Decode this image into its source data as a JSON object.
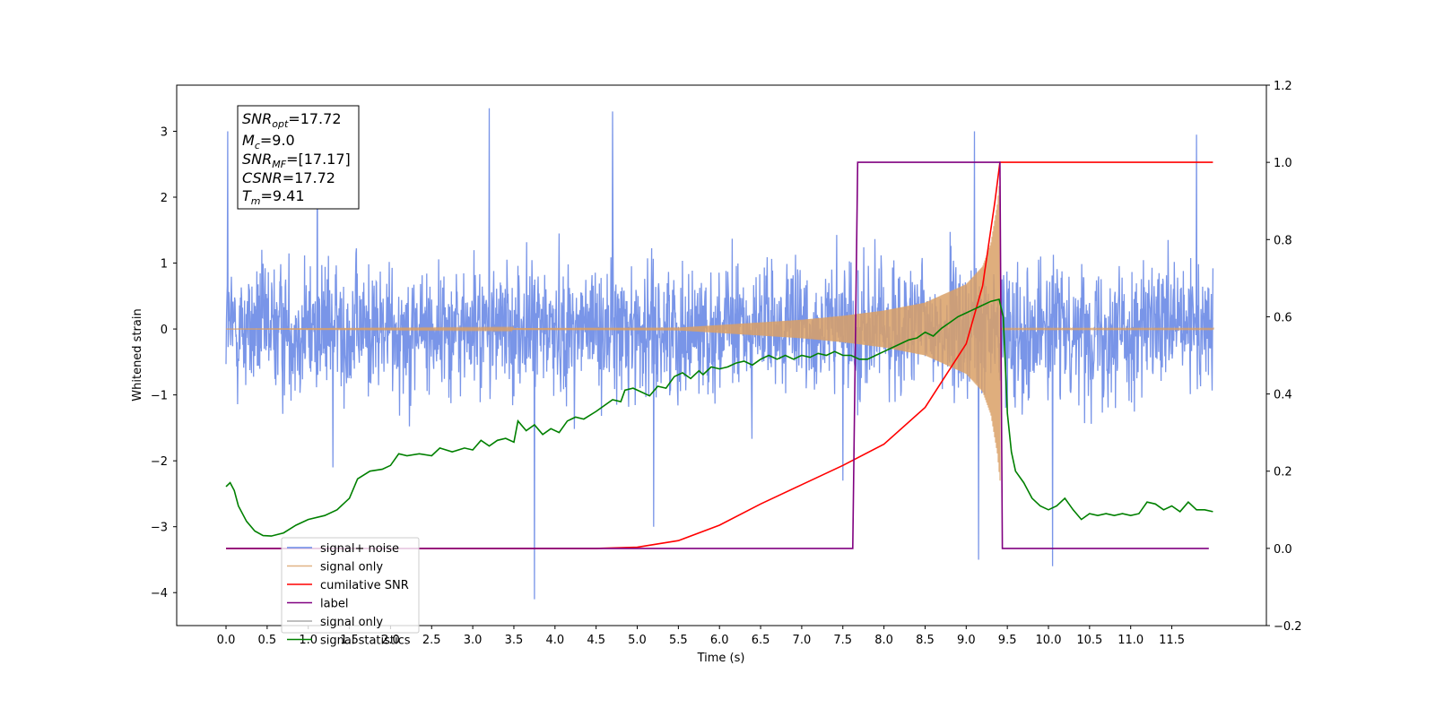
{
  "chart_data": {
    "type": "line",
    "xlabel": "Time (s)",
    "ylabel": "Whitened strain",
    "xlim": [
      -0.6,
      12.65
    ],
    "ylim_left": [
      -4.5,
      3.7
    ],
    "ylim_right": [
      -0.2,
      1.2
    ],
    "x_ticks": [
      "0.0",
      "0.5",
      "1.0",
      "1.5",
      "2.0",
      "2.5",
      "3.0",
      "3.5",
      "4.0",
      "4.5",
      "5.0",
      "5.5",
      "6.0",
      "6.5",
      "7.0",
      "7.5",
      "8.0",
      "8.5",
      "9.0",
      "9.5",
      "10.0",
      "10.5",
      "11.0",
      "11.5"
    ],
    "y_ticks_left": [
      "3",
      "2",
      "1",
      "0",
      "−1",
      "−2",
      "−3",
      "−4"
    ],
    "y_ticks_right": [
      "1.2",
      "1.0",
      "0.8",
      "0.6",
      "0.4",
      "0.2",
      "0.0",
      "−0.2"
    ],
    "legend_position": "lower-left",
    "grid": false,
    "annotation": {
      "snr_opt": {
        "symbol": "SNR",
        "sub": "opt",
        "value": "=17.72"
      },
      "mc": {
        "symbol": "M",
        "sub": "c",
        "value": "=9.0"
      },
      "snr_mf": {
        "symbol": "SNR",
        "sub": "MF",
        "value": "=[17.17]"
      },
      "csnr": {
        "symbol": "CSNR",
        "sub": "",
        "value": "=17.72"
      },
      "tm": {
        "symbol": "T",
        "sub": "m",
        "value": "=9.41"
      }
    },
    "series": [
      {
        "name": "signal+ noise",
        "axis": "left",
        "color": "#6a8ae6",
        "t_range": [
          0.0,
          12.0
        ],
        "noise_std": 0.8,
        "extremes": [
          [
            0.02,
            3.0
          ],
          [
            1.11,
            2.9
          ],
          [
            1.3,
            -2.1
          ],
          [
            3.2,
            3.35
          ],
          [
            3.75,
            -4.1
          ],
          [
            4.7,
            3.3
          ],
          [
            5.2,
            -3.0
          ],
          [
            9.15,
            -3.5
          ],
          [
            10.05,
            -3.6
          ],
          [
            11.8,
            2.95
          ],
          [
            7.5,
            -2.3
          ],
          [
            9.1,
            3.0
          ]
        ]
      },
      {
        "name": "signal only",
        "axis": "left",
        "color": "#d9a066",
        "t_range": [
          0.0,
          9.41
        ],
        "envelope": [
          [
            5.5,
            0.02
          ],
          [
            6.0,
            0.06
          ],
          [
            6.5,
            0.1
          ],
          [
            7.0,
            0.14
          ],
          [
            7.5,
            0.2
          ],
          [
            8.0,
            0.28
          ],
          [
            8.5,
            0.4
          ],
          [
            9.0,
            0.68
          ],
          [
            9.2,
            0.95
          ],
          [
            9.3,
            1.3
          ],
          [
            9.38,
            1.9
          ],
          [
            9.41,
            2.3
          ]
        ]
      },
      {
        "name": "cumilative SNR",
        "axis": "right",
        "color": "#ff0000",
        "points": [
          [
            0.0,
            0.0
          ],
          [
            4.5,
            0.0
          ],
          [
            5.0,
            0.003
          ],
          [
            5.5,
            0.02
          ],
          [
            6.0,
            0.06
          ],
          [
            6.5,
            0.115
          ],
          [
            7.0,
            0.165
          ],
          [
            7.5,
            0.215
          ],
          [
            8.0,
            0.27
          ],
          [
            8.5,
            0.365
          ],
          [
            9.0,
            0.53
          ],
          [
            9.2,
            0.68
          ],
          [
            9.35,
            0.9
          ],
          [
            9.41,
            1.0
          ],
          [
            12.0,
            1.0
          ]
        ]
      },
      {
        "name": "label",
        "axis": "right",
        "color": "#800080",
        "points": [
          [
            0.0,
            0.0
          ],
          [
            7.62,
            0.0
          ],
          [
            7.68,
            1.0
          ],
          [
            9.41,
            1.0
          ],
          [
            9.44,
            0.0
          ],
          [
            11.95,
            0.0
          ]
        ]
      },
      {
        "name": "signal only",
        "axis": "right",
        "color": "#aaaaaa",
        "legend_only": true
      },
      {
        "name": "signal statistics",
        "axis": "right",
        "color": "#008000",
        "points": [
          [
            0.0,
            0.16
          ],
          [
            0.05,
            0.17
          ],
          [
            0.1,
            0.15
          ],
          [
            0.15,
            0.11
          ],
          [
            0.25,
            0.07
          ],
          [
            0.35,
            0.045
          ],
          [
            0.45,
            0.033
          ],
          [
            0.55,
            0.032
          ],
          [
            0.7,
            0.04
          ],
          [
            0.85,
            0.06
          ],
          [
            1.0,
            0.075
          ],
          [
            1.2,
            0.085
          ],
          [
            1.35,
            0.1
          ],
          [
            1.5,
            0.13
          ],
          [
            1.6,
            0.18
          ],
          [
            1.75,
            0.2
          ],
          [
            1.9,
            0.205
          ],
          [
            2.0,
            0.215
          ],
          [
            2.1,
            0.245
          ],
          [
            2.2,
            0.24
          ],
          [
            2.35,
            0.245
          ],
          [
            2.5,
            0.24
          ],
          [
            2.6,
            0.26
          ],
          [
            2.75,
            0.25
          ],
          [
            2.9,
            0.26
          ],
          [
            3.0,
            0.255
          ],
          [
            3.1,
            0.28
          ],
          [
            3.2,
            0.265
          ],
          [
            3.3,
            0.28
          ],
          [
            3.4,
            0.285
          ],
          [
            3.5,
            0.275
          ],
          [
            3.55,
            0.33
          ],
          [
            3.65,
            0.305
          ],
          [
            3.75,
            0.32
          ],
          [
            3.85,
            0.295
          ],
          [
            3.95,
            0.31
          ],
          [
            4.05,
            0.3
          ],
          [
            4.15,
            0.33
          ],
          [
            4.25,
            0.34
          ],
          [
            4.35,
            0.335
          ],
          [
            4.5,
            0.355
          ],
          [
            4.6,
            0.37
          ],
          [
            4.7,
            0.385
          ],
          [
            4.8,
            0.38
          ],
          [
            4.85,
            0.41
          ],
          [
            4.95,
            0.415
          ],
          [
            5.05,
            0.405
          ],
          [
            5.15,
            0.395
          ],
          [
            5.25,
            0.42
          ],
          [
            5.35,
            0.415
          ],
          [
            5.45,
            0.445
          ],
          [
            5.55,
            0.455
          ],
          [
            5.65,
            0.44
          ],
          [
            5.75,
            0.46
          ],
          [
            5.8,
            0.45
          ],
          [
            5.9,
            0.47
          ],
          [
            6.0,
            0.465
          ],
          [
            6.1,
            0.47
          ],
          [
            6.2,
            0.48
          ],
          [
            6.3,
            0.485
          ],
          [
            6.4,
            0.475
          ],
          [
            6.5,
            0.49
          ],
          [
            6.6,
            0.5
          ],
          [
            6.7,
            0.49
          ],
          [
            6.8,
            0.5
          ],
          [
            6.9,
            0.49
          ],
          [
            7.0,
            0.5
          ],
          [
            7.1,
            0.495
          ],
          [
            7.2,
            0.505
          ],
          [
            7.3,
            0.5
          ],
          [
            7.4,
            0.51
          ],
          [
            7.5,
            0.5
          ],
          [
            7.6,
            0.5
          ],
          [
            7.7,
            0.49
          ],
          [
            7.8,
            0.49
          ],
          [
            7.9,
            0.5
          ],
          [
            8.0,
            0.51
          ],
          [
            8.1,
            0.52
          ],
          [
            8.2,
            0.53
          ],
          [
            8.3,
            0.54
          ],
          [
            8.4,
            0.545
          ],
          [
            8.5,
            0.56
          ],
          [
            8.6,
            0.55
          ],
          [
            8.7,
            0.57
          ],
          [
            8.8,
            0.585
          ],
          [
            8.9,
            0.6
          ],
          [
            9.0,
            0.61
          ],
          [
            9.1,
            0.62
          ],
          [
            9.2,
            0.63
          ],
          [
            9.3,
            0.64
          ],
          [
            9.4,
            0.645
          ],
          [
            9.45,
            0.6
          ],
          [
            9.5,
            0.35
          ],
          [
            9.55,
            0.25
          ],
          [
            9.6,
            0.2
          ],
          [
            9.7,
            0.17
          ],
          [
            9.8,
            0.13
          ],
          [
            9.9,
            0.11
          ],
          [
            10.0,
            0.1
          ],
          [
            10.1,
            0.11
          ],
          [
            10.2,
            0.13
          ],
          [
            10.3,
            0.1
          ],
          [
            10.4,
            0.075
          ],
          [
            10.5,
            0.09
          ],
          [
            10.6,
            0.085
          ],
          [
            10.7,
            0.09
          ],
          [
            10.8,
            0.085
          ],
          [
            10.9,
            0.09
          ],
          [
            11.0,
            0.085
          ],
          [
            11.1,
            0.09
          ],
          [
            11.2,
            0.12
          ],
          [
            11.3,
            0.115
          ],
          [
            11.4,
            0.1
          ],
          [
            11.5,
            0.11
          ],
          [
            11.6,
            0.095
          ],
          [
            11.7,
            0.12
          ],
          [
            11.8,
            0.1
          ],
          [
            11.9,
            0.1
          ],
          [
            12.0,
            0.095
          ]
        ]
      }
    ]
  }
}
